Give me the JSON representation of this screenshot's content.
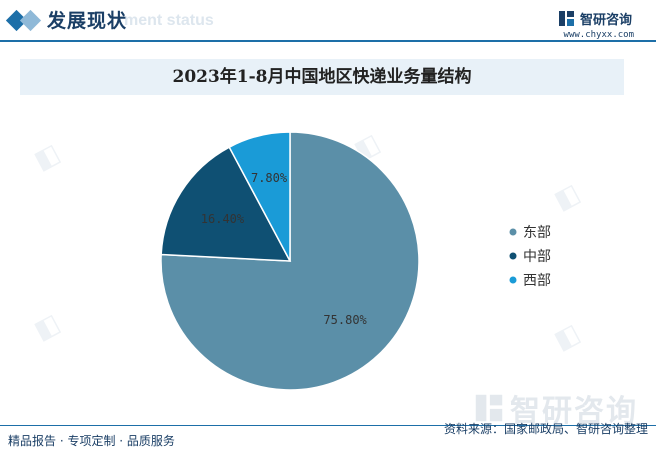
{
  "header": {
    "title": "发展现状",
    "subtitle": "ment status",
    "brand_name": "智研咨询",
    "brand_url": "www.chyxx.com"
  },
  "chart_data": {
    "type": "pie",
    "title": "2023年1-8月中国地区快递业务量结构",
    "categories": [
      "东部",
      "中部",
      "西部"
    ],
    "values": [
      75.8,
      16.4,
      7.8
    ],
    "value_labels": [
      "75.80%",
      "16.40%",
      "7.80%"
    ],
    "colors": [
      "#5b8fa8",
      "#0f5073",
      "#1a9bd7"
    ],
    "legend_position": "right"
  },
  "footer": {
    "left": "精品报告 · 专项定制 · 品质服务",
    "source": "资料来源：国家邮政局、智研咨询整理"
  },
  "watermark": {
    "brand_name": "智研咨询"
  }
}
